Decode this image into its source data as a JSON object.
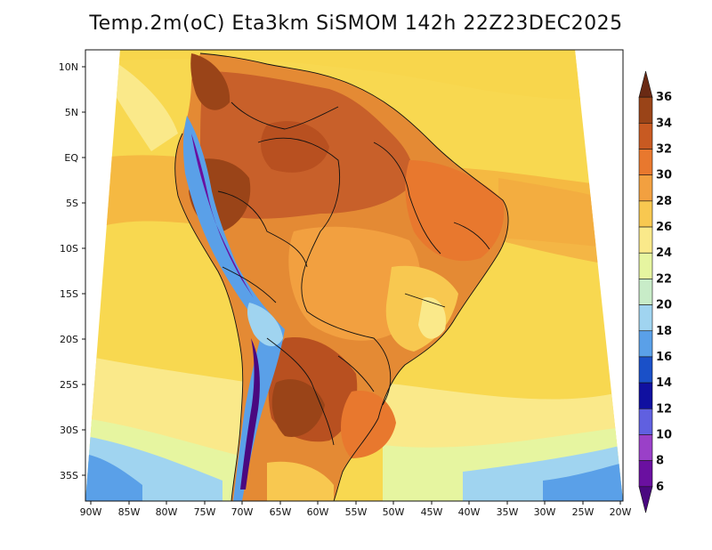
{
  "title": "Temp.2m(oC) Eta3km SiSMOM 142h 22Z23DEC2025",
  "map": {
    "lat_labels": [
      "10N",
      "5N",
      "EQ",
      "5S",
      "10S",
      "15S",
      "20S",
      "25S",
      "30S",
      "35S"
    ],
    "lon_labels": [
      "90W",
      "85W",
      "80W",
      "75W",
      "70W",
      "65W",
      "60W",
      "55W",
      "50W",
      "45W",
      "40W",
      "35W",
      "30W",
      "25W",
      "20W"
    ]
  },
  "colorbar": {
    "labels": [
      "36",
      "34",
      "32",
      "30",
      "28",
      "26",
      "24",
      "22",
      "20",
      "18",
      "16",
      "14",
      "12",
      "10",
      "8",
      "6"
    ],
    "colors": [
      "#6a2a14",
      "#9a4418",
      "#c85a22",
      "#e8782e",
      "#f2a040",
      "#f8c850",
      "#fae98a",
      "#e6f5a0",
      "#c8ecc8",
      "#a0d4f0",
      "#5aa0e8",
      "#1a50c8",
      "#1010a0",
      "#6060e0",
      "#9a40c8",
      "#6a10a0",
      "#4a0880"
    ]
  }
}
